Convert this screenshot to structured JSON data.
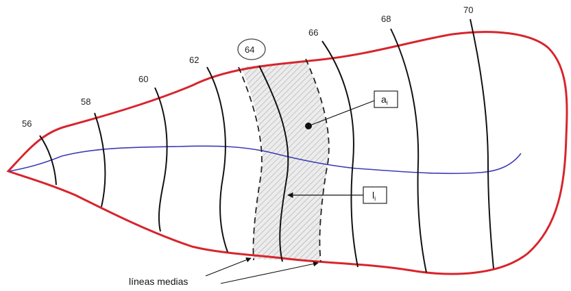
{
  "diagram": {
    "contour_labels": [
      "56",
      "58",
      "60",
      "62",
      "64",
      "66",
      "68",
      "70"
    ],
    "highlighted_label": "64",
    "area_label": {
      "main": "a",
      "sub": "i"
    },
    "line_label": {
      "main": "l",
      "sub": "i"
    },
    "caption": "líneas medias",
    "colors": {
      "outline": "#d8242c",
      "midline": "#3a3ab8",
      "contour": "#111111",
      "hatch": "#b8b8b8",
      "background": "#ffffff"
    }
  }
}
